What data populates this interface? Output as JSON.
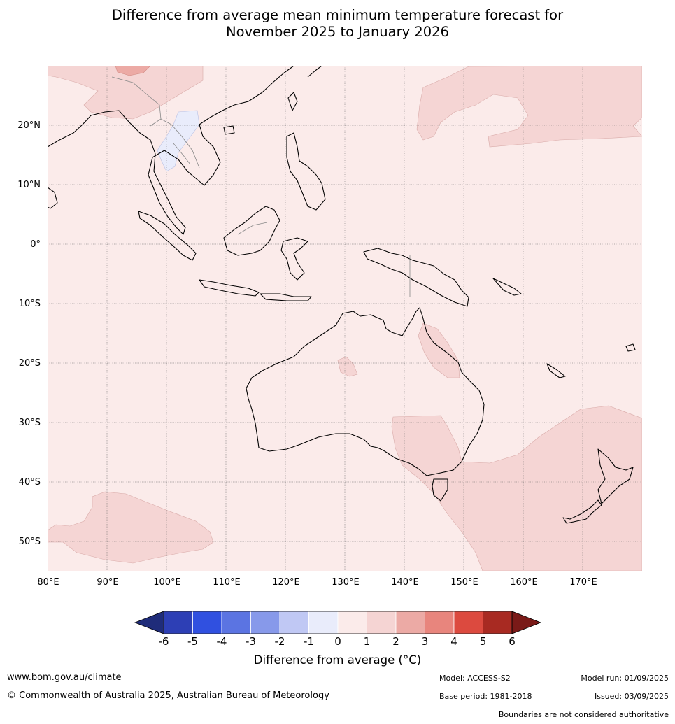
{
  "title_line1": "Difference from average mean minimum temperature forecast for",
  "title_line2": "November 2025 to January 2026",
  "map": {
    "lat_labels": [
      "20°N",
      "10°N",
      "0°",
      "10°S",
      "20°S",
      "30°S",
      "40°S",
      "50°S"
    ],
    "lon_labels": [
      "80°E",
      "90°E",
      "100°E",
      "110°E",
      "120°E",
      "130°E",
      "140°E",
      "150°E",
      "160°E",
      "170°E"
    ],
    "background_color": "#fbebea",
    "land_outline_color": "#000000"
  },
  "colorbar": {
    "title": "Difference from average (",
    "title_unit": "°C)",
    "tick_labels": [
      "-6",
      "-5",
      "-4",
      "-3",
      "-2",
      "-1",
      "0",
      "1",
      "2",
      "3",
      "4",
      "5",
      "6"
    ],
    "colors": [
      "#1f2c7a",
      "#2d3fb5",
      "#3050e0",
      "#5b74e2",
      "#8799ea",
      "#c0c8f4",
      "#e9ecfb",
      "#fbebea",
      "#f5d4d3",
      "#ecaaa5",
      "#e8857d",
      "#dc4a3f",
      "#a82a22",
      "#7a1a18"
    ]
  },
  "footer": {
    "website": "www.bom.gov.au/climate",
    "copyright": "© Commonwealth of Australia 2025, Australian Bureau of Meteorology",
    "model": "Model: ACCESS-S2",
    "base_period": "Base period: 1981-2018",
    "model_run": "Model run: 01/09/2025",
    "issued": "Issued: 03/09/2025",
    "disclaimer": "Boundaries are not considered authoritative"
  }
}
